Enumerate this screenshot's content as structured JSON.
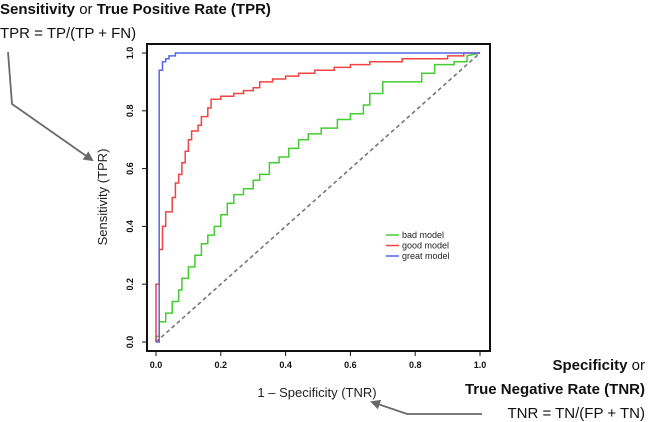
{
  "annotations": {
    "top_bold1": "Sensitivity",
    "top_mid": " or ",
    "top_bold2": "True Positive Rate (TPR)",
    "top_formula": "TPR = TP/(TP + FN)",
    "right_line1_bold": "Specificity",
    "right_line1_rest": " or",
    "right_line2_bold": "True Negative Rate (TNR)",
    "right_formula": "TNR = TN/(FP + TN)"
  },
  "chart_data": {
    "type": "line",
    "xlabel": "1 – Specificity (TNR)",
    "ylabel": "Sensitivity (TPR)",
    "xlim": [
      0,
      1
    ],
    "ylim": [
      0,
      1
    ],
    "x_ticks": [
      "0.0",
      "0.2",
      "0.4",
      "0.6",
      "0.8",
      "1.0"
    ],
    "y_ticks": [
      "0.0",
      "0.2",
      "0.4",
      "0.6",
      "0.8",
      "1.0"
    ],
    "grid": false,
    "legend_position": "right-center",
    "diagonal": {
      "from": [
        0,
        0
      ],
      "to": [
        1,
        1
      ],
      "style": "dashed",
      "color": "#777777"
    },
    "series": [
      {
        "name": "bad model",
        "color": "#44cc33",
        "points": [
          [
            0,
            0
          ],
          [
            0,
            0.02
          ],
          [
            0.01,
            0.02
          ],
          [
            0.01,
            0.07
          ],
          [
            0.03,
            0.07
          ],
          [
            0.03,
            0.1
          ],
          [
            0.05,
            0.1
          ],
          [
            0.05,
            0.14
          ],
          [
            0.07,
            0.14
          ],
          [
            0.07,
            0.18
          ],
          [
            0.08,
            0.18
          ],
          [
            0.08,
            0.22
          ],
          [
            0.1,
            0.22
          ],
          [
            0.1,
            0.26
          ],
          [
            0.12,
            0.26
          ],
          [
            0.12,
            0.3
          ],
          [
            0.14,
            0.3
          ],
          [
            0.14,
            0.34
          ],
          [
            0.16,
            0.34
          ],
          [
            0.16,
            0.37
          ],
          [
            0.18,
            0.37
          ],
          [
            0.18,
            0.4
          ],
          [
            0.2,
            0.4
          ],
          [
            0.2,
            0.44
          ],
          [
            0.22,
            0.44
          ],
          [
            0.22,
            0.48
          ],
          [
            0.24,
            0.48
          ],
          [
            0.24,
            0.51
          ],
          [
            0.27,
            0.51
          ],
          [
            0.27,
            0.53
          ],
          [
            0.3,
            0.53
          ],
          [
            0.3,
            0.56
          ],
          [
            0.32,
            0.56
          ],
          [
            0.32,
            0.58
          ],
          [
            0.35,
            0.58
          ],
          [
            0.35,
            0.62
          ],
          [
            0.38,
            0.62
          ],
          [
            0.38,
            0.64
          ],
          [
            0.41,
            0.64
          ],
          [
            0.41,
            0.67
          ],
          [
            0.44,
            0.67
          ],
          [
            0.44,
            0.7
          ],
          [
            0.47,
            0.7
          ],
          [
            0.47,
            0.72
          ],
          [
            0.51,
            0.72
          ],
          [
            0.51,
            0.74
          ],
          [
            0.56,
            0.74
          ],
          [
            0.56,
            0.77
          ],
          [
            0.6,
            0.77
          ],
          [
            0.6,
            0.79
          ],
          [
            0.64,
            0.79
          ],
          [
            0.64,
            0.82
          ],
          [
            0.66,
            0.82
          ],
          [
            0.66,
            0.86
          ],
          [
            0.7,
            0.86
          ],
          [
            0.7,
            0.9
          ],
          [
            0.82,
            0.9
          ],
          [
            0.82,
            0.93
          ],
          [
            0.86,
            0.93
          ],
          [
            0.86,
            0.96
          ],
          [
            0.92,
            0.96
          ],
          [
            0.92,
            0.97
          ],
          [
            0.96,
            0.97
          ],
          [
            0.96,
            0.99
          ],
          [
            1,
            1
          ]
        ]
      },
      {
        "name": "good model",
        "color": "#ee4444",
        "points": [
          [
            0,
            0
          ],
          [
            0,
            0.2
          ],
          [
            0.01,
            0.2
          ],
          [
            0.01,
            0.32
          ],
          [
            0.02,
            0.32
          ],
          [
            0.02,
            0.4
          ],
          [
            0.03,
            0.4
          ],
          [
            0.03,
            0.45
          ],
          [
            0.05,
            0.45
          ],
          [
            0.05,
            0.5
          ],
          [
            0.06,
            0.5
          ],
          [
            0.06,
            0.55
          ],
          [
            0.07,
            0.55
          ],
          [
            0.07,
            0.58
          ],
          [
            0.08,
            0.58
          ],
          [
            0.08,
            0.62
          ],
          [
            0.09,
            0.62
          ],
          [
            0.09,
            0.66
          ],
          [
            0.1,
            0.66
          ],
          [
            0.1,
            0.7
          ],
          [
            0.11,
            0.7
          ],
          [
            0.11,
            0.73
          ],
          [
            0.13,
            0.73
          ],
          [
            0.13,
            0.75
          ],
          [
            0.14,
            0.75
          ],
          [
            0.14,
            0.78
          ],
          [
            0.16,
            0.78
          ],
          [
            0.16,
            0.81
          ],
          [
            0.17,
            0.81
          ],
          [
            0.17,
            0.84
          ],
          [
            0.2,
            0.84
          ],
          [
            0.2,
            0.85
          ],
          [
            0.24,
            0.85
          ],
          [
            0.24,
            0.86
          ],
          [
            0.27,
            0.86
          ],
          [
            0.27,
            0.87
          ],
          [
            0.3,
            0.87
          ],
          [
            0.3,
            0.88
          ],
          [
            0.32,
            0.88
          ],
          [
            0.32,
            0.9
          ],
          [
            0.36,
            0.9
          ],
          [
            0.36,
            0.91
          ],
          [
            0.4,
            0.91
          ],
          [
            0.4,
            0.92
          ],
          [
            0.44,
            0.92
          ],
          [
            0.44,
            0.93
          ],
          [
            0.49,
            0.93
          ],
          [
            0.49,
            0.94
          ],
          [
            0.55,
            0.94
          ],
          [
            0.55,
            0.95
          ],
          [
            0.6,
            0.95
          ],
          [
            0.6,
            0.96
          ],
          [
            0.66,
            0.96
          ],
          [
            0.66,
            0.97
          ],
          [
            0.76,
            0.97
          ],
          [
            0.76,
            0.98
          ],
          [
            0.9,
            0.98
          ],
          [
            0.9,
            0.99
          ],
          [
            0.95,
            0.99
          ],
          [
            0.95,
            1
          ],
          [
            1,
            1
          ]
        ]
      },
      {
        "name": "great model",
        "color": "#5566ee",
        "points": [
          [
            0,
            0
          ],
          [
            0.01,
            0
          ],
          [
            0.01,
            0.94
          ],
          [
            0.02,
            0.94
          ],
          [
            0.02,
            0.97
          ],
          [
            0.03,
            0.97
          ],
          [
            0.03,
            0.98
          ],
          [
            0.04,
            0.98
          ],
          [
            0.04,
            0.99
          ],
          [
            0.06,
            0.99
          ],
          [
            0.06,
            1
          ],
          [
            1,
            1
          ]
        ]
      }
    ]
  }
}
